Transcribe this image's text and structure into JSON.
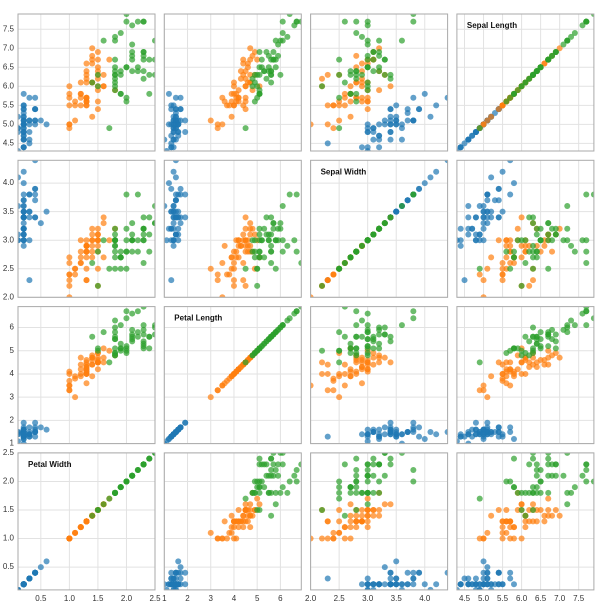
{
  "chart_data": {
    "type": "scatter_matrix",
    "grid": true,
    "opacity": 0.7,
    "dimensions": [
      {
        "label": "Sepal Length",
        "lim": [
          4.3,
          7.9
        ],
        "ticks": [
          4.5,
          {
            "value": 5,
            "label": "5.0"
          },
          5.5,
          {
            "value": 6,
            "label": "6.0"
          },
          6.5,
          {
            "value": 7,
            "label": "7.0"
          },
          7.5
        ]
      },
      {
        "label": "Sepal Width",
        "lim": [
          2.0,
          4.4
        ],
        "ticks": [
          {
            "value": 2,
            "label": "2.0"
          },
          2.5,
          {
            "value": 3,
            "label": "3.0"
          },
          3.5,
          {
            "value": 4,
            "label": "4.0"
          }
        ]
      },
      {
        "label": "Petal Length",
        "lim": [
          1.0,
          6.9
        ],
        "ticks": [
          1,
          2,
          3,
          4,
          5,
          6
        ]
      },
      {
        "label": "Petal Width",
        "lim": [
          0.1,
          2.5
        ],
        "ticks": [
          0.5,
          {
            "value": 1,
            "label": "1.0"
          },
          1.5,
          {
            "value": 2,
            "label": "2.0"
          },
          2.5
        ]
      }
    ],
    "series": [
      {
        "color": "#1f77b4",
        "points": [
          [
            5.1,
            3.5,
            1.4,
            0.2
          ],
          [
            4.9,
            3.0,
            1.4,
            0.2
          ],
          [
            4.7,
            3.2,
            1.3,
            0.2
          ],
          [
            4.6,
            3.1,
            1.5,
            0.2
          ],
          [
            5.0,
            3.6,
            1.4,
            0.2
          ],
          [
            5.4,
            3.9,
            1.7,
            0.4
          ],
          [
            4.6,
            3.4,
            1.4,
            0.3
          ],
          [
            5.0,
            3.4,
            1.5,
            0.2
          ],
          [
            4.4,
            2.9,
            1.4,
            0.2
          ],
          [
            4.9,
            3.1,
            1.5,
            0.1
          ],
          [
            5.4,
            3.7,
            1.5,
            0.2
          ],
          [
            4.8,
            3.4,
            1.6,
            0.2
          ],
          [
            4.8,
            3.0,
            1.4,
            0.1
          ],
          [
            4.3,
            3.0,
            1.1,
            0.1
          ],
          [
            5.8,
            4.0,
            1.2,
            0.2
          ],
          [
            5.7,
            4.4,
            1.5,
            0.4
          ],
          [
            5.4,
            3.9,
            1.3,
            0.4
          ],
          [
            5.1,
            3.5,
            1.4,
            0.3
          ],
          [
            5.7,
            3.8,
            1.7,
            0.3
          ],
          [
            5.1,
            3.8,
            1.5,
            0.3
          ],
          [
            5.4,
            3.4,
            1.7,
            0.2
          ],
          [
            5.1,
            3.7,
            1.5,
            0.4
          ],
          [
            4.6,
            3.6,
            1.0,
            0.2
          ],
          [
            5.1,
            3.3,
            1.7,
            0.5
          ],
          [
            4.8,
            3.4,
            1.9,
            0.2
          ],
          [
            5.0,
            3.0,
            1.6,
            0.2
          ],
          [
            5.0,
            3.4,
            1.6,
            0.4
          ],
          [
            5.2,
            3.5,
            1.5,
            0.2
          ],
          [
            5.2,
            3.4,
            1.4,
            0.2
          ],
          [
            4.7,
            3.2,
            1.6,
            0.2
          ],
          [
            4.8,
            3.1,
            1.6,
            0.2
          ],
          [
            5.4,
            3.4,
            1.5,
            0.4
          ],
          [
            5.2,
            4.1,
            1.5,
            0.1
          ],
          [
            5.5,
            4.2,
            1.4,
            0.2
          ],
          [
            4.9,
            3.1,
            1.5,
            0.2
          ],
          [
            5.0,
            3.2,
            1.2,
            0.2
          ],
          [
            5.5,
            3.5,
            1.3,
            0.2
          ],
          [
            4.9,
            3.6,
            1.4,
            0.1
          ],
          [
            4.4,
            3.0,
            1.3,
            0.2
          ],
          [
            5.1,
            3.4,
            1.5,
            0.2
          ],
          [
            5.0,
            3.5,
            1.3,
            0.3
          ],
          [
            4.5,
            2.3,
            1.3,
            0.3
          ],
          [
            4.4,
            3.2,
            1.3,
            0.2
          ],
          [
            5.0,
            3.5,
            1.6,
            0.6
          ],
          [
            5.1,
            3.8,
            1.9,
            0.4
          ],
          [
            4.8,
            3.0,
            1.4,
            0.3
          ],
          [
            5.1,
            3.8,
            1.6,
            0.2
          ],
          [
            4.6,
            3.2,
            1.4,
            0.2
          ],
          [
            5.3,
            3.7,
            1.5,
            0.2
          ],
          [
            5.0,
            3.3,
            1.4,
            0.2
          ]
        ]
      },
      {
        "color": "#ff7f0e",
        "points": [
          [
            7.0,
            3.2,
            4.7,
            1.4
          ],
          [
            6.4,
            3.2,
            4.5,
            1.5
          ],
          [
            6.9,
            3.1,
            4.9,
            1.5
          ],
          [
            5.5,
            2.3,
            4.0,
            1.3
          ],
          [
            6.5,
            2.8,
            4.6,
            1.5
          ],
          [
            5.7,
            2.8,
            4.5,
            1.3
          ],
          [
            6.3,
            3.3,
            4.7,
            1.6
          ],
          [
            4.9,
            2.4,
            3.3,
            1.0
          ],
          [
            6.6,
            2.9,
            4.6,
            1.3
          ],
          [
            5.2,
            2.7,
            3.9,
            1.4
          ],
          [
            5.0,
            2.0,
            3.5,
            1.0
          ],
          [
            5.9,
            3.0,
            4.2,
            1.5
          ],
          [
            6.0,
            2.2,
            4.0,
            1.0
          ],
          [
            6.1,
            2.9,
            4.7,
            1.4
          ],
          [
            5.6,
            2.9,
            3.6,
            1.3
          ],
          [
            6.7,
            3.1,
            4.4,
            1.4
          ],
          [
            5.6,
            3.0,
            4.5,
            1.5
          ],
          [
            5.8,
            2.7,
            4.1,
            1.0
          ],
          [
            6.2,
            2.2,
            4.5,
            1.5
          ],
          [
            5.6,
            2.5,
            3.9,
            1.1
          ],
          [
            5.9,
            3.2,
            4.8,
            1.8
          ],
          [
            6.1,
            2.8,
            4.0,
            1.3
          ],
          [
            6.3,
            2.5,
            4.9,
            1.5
          ],
          [
            6.1,
            2.8,
            4.7,
            1.2
          ],
          [
            6.4,
            2.9,
            4.3,
            1.3
          ],
          [
            6.6,
            3.0,
            4.4,
            1.4
          ],
          [
            6.8,
            2.8,
            4.8,
            1.4
          ],
          [
            6.7,
            3.0,
            5.0,
            1.7
          ],
          [
            6.0,
            2.9,
            4.5,
            1.5
          ],
          [
            5.7,
            2.6,
            3.5,
            1.0
          ],
          [
            5.5,
            2.4,
            3.8,
            1.1
          ],
          [
            5.5,
            2.4,
            3.7,
            1.0
          ],
          [
            5.8,
            2.7,
            3.9,
            1.2
          ],
          [
            6.0,
            2.7,
            5.1,
            1.6
          ],
          [
            5.4,
            3.0,
            4.5,
            1.5
          ],
          [
            6.0,
            3.4,
            4.5,
            1.6
          ],
          [
            6.7,
            3.1,
            4.7,
            1.5
          ],
          [
            6.3,
            2.3,
            4.4,
            1.3
          ],
          [
            5.6,
            3.0,
            4.1,
            1.3
          ],
          [
            5.5,
            2.5,
            4.0,
            1.3
          ],
          [
            5.5,
            2.6,
            4.4,
            1.2
          ],
          [
            6.1,
            3.0,
            4.6,
            1.4
          ],
          [
            5.8,
            2.6,
            4.0,
            1.2
          ],
          [
            5.0,
            2.3,
            3.3,
            1.0
          ],
          [
            5.6,
            2.7,
            4.2,
            1.3
          ],
          [
            5.7,
            3.0,
            4.2,
            1.2
          ],
          [
            5.7,
            2.9,
            4.2,
            1.3
          ],
          [
            6.2,
            2.9,
            4.3,
            1.3
          ],
          [
            5.1,
            2.5,
            3.0,
            1.1
          ],
          [
            5.7,
            2.8,
            4.1,
            1.3
          ]
        ]
      },
      {
        "color": "#2ca02c",
        "points": [
          [
            6.3,
            3.3,
            6.0,
            2.5
          ],
          [
            5.8,
            2.7,
            5.1,
            1.9
          ],
          [
            7.1,
            3.0,
            5.9,
            2.1
          ],
          [
            6.3,
            2.9,
            5.6,
            1.8
          ],
          [
            6.5,
            3.0,
            5.8,
            2.2
          ],
          [
            7.6,
            3.0,
            6.6,
            2.1
          ],
          [
            4.9,
            2.5,
            4.5,
            1.7
          ],
          [
            7.3,
            2.9,
            6.3,
            1.8
          ],
          [
            6.7,
            2.5,
            5.8,
            1.8
          ],
          [
            7.2,
            3.6,
            6.1,
            2.5
          ],
          [
            6.5,
            3.2,
            5.1,
            2.0
          ],
          [
            6.4,
            2.7,
            5.3,
            1.9
          ],
          [
            6.8,
            3.0,
            5.5,
            2.1
          ],
          [
            5.7,
            2.5,
            5.0,
            2.0
          ],
          [
            5.8,
            2.8,
            5.1,
            2.4
          ],
          [
            6.4,
            3.2,
            5.3,
            2.3
          ],
          [
            6.5,
            3.0,
            5.5,
            1.8
          ],
          [
            7.7,
            3.8,
            6.7,
            2.2
          ],
          [
            7.7,
            2.6,
            6.9,
            2.3
          ],
          [
            6.0,
            2.2,
            5.0,
            1.5
          ],
          [
            6.9,
            3.2,
            5.7,
            2.3
          ],
          [
            5.6,
            2.8,
            4.9,
            2.0
          ],
          [
            7.7,
            2.8,
            6.7,
            2.0
          ],
          [
            6.3,
            2.7,
            4.9,
            1.8
          ],
          [
            6.7,
            3.3,
            5.7,
            2.1
          ],
          [
            7.2,
            3.2,
            6.0,
            1.8
          ],
          [
            6.2,
            2.8,
            4.8,
            1.8
          ],
          [
            6.1,
            3.0,
            4.9,
            1.8
          ],
          [
            6.4,
            2.8,
            5.6,
            2.1
          ],
          [
            7.2,
            3.0,
            5.8,
            1.6
          ],
          [
            7.4,
            2.8,
            6.1,
            1.9
          ],
          [
            7.9,
            3.8,
            6.4,
            2.0
          ],
          [
            6.4,
            2.8,
            5.6,
            2.2
          ],
          [
            6.3,
            2.8,
            5.1,
            1.5
          ],
          [
            6.1,
            2.6,
            5.6,
            1.4
          ],
          [
            7.7,
            3.0,
            6.1,
            2.3
          ],
          [
            6.3,
            3.4,
            5.6,
            2.4
          ],
          [
            6.4,
            3.1,
            5.5,
            1.8
          ],
          [
            6.0,
            3.0,
            4.8,
            1.8
          ],
          [
            6.9,
            3.1,
            5.4,
            2.1
          ],
          [
            6.7,
            3.1,
            5.6,
            2.4
          ],
          [
            6.9,
            3.1,
            5.1,
            2.3
          ],
          [
            5.8,
            2.7,
            5.1,
            1.9
          ],
          [
            6.8,
            3.2,
            5.9,
            2.3
          ],
          [
            6.7,
            3.3,
            5.7,
            2.5
          ],
          [
            6.7,
            3.0,
            5.2,
            2.3
          ],
          [
            6.3,
            2.5,
            5.0,
            1.9
          ],
          [
            6.5,
            3.0,
            5.2,
            2.0
          ],
          [
            6.2,
            3.4,
            5.4,
            2.3
          ],
          [
            5.9,
            3.0,
            5.1,
            1.8
          ]
        ]
      }
    ]
  }
}
